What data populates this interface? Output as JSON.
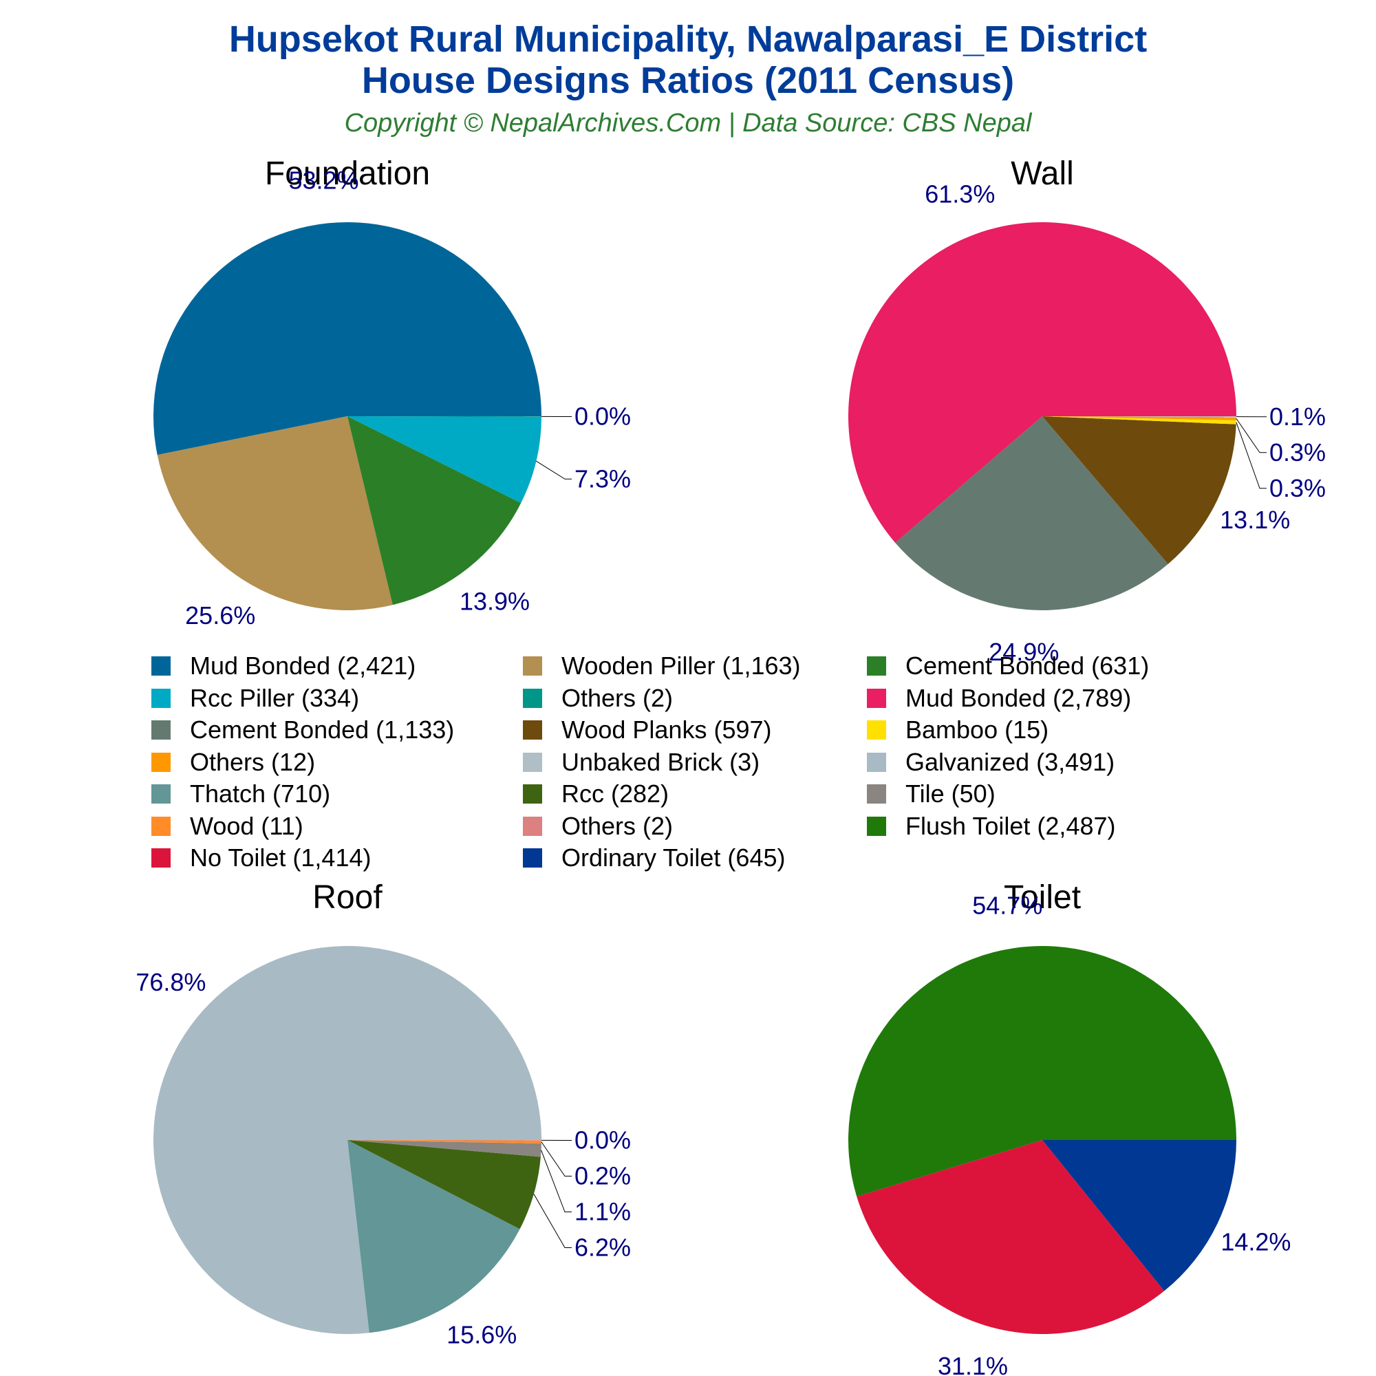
{
  "header": {
    "title_line1": "Hupsekot Rural Municipality, Nawalparasi_E District",
    "title_line2": "House Designs Ratios (2011 Census)",
    "subtitle": "Copyright © NepalArchives.Com | Data Source: CBS Nepal"
  },
  "chart_data": [
    {
      "type": "pie",
      "title": "Foundation",
      "slices": [
        {
          "label": "Mud Bonded",
          "count": 2421,
          "percent": "53.2%",
          "color": "#006699"
        },
        {
          "label": "Wooden Piller",
          "count": 1163,
          "percent": "25.6%",
          "color": "#B38F50"
        },
        {
          "label": "Cement Bonded",
          "count": 631,
          "percent": "13.9%",
          "color": "#2B7F27"
        },
        {
          "label": "Rcc Piller",
          "count": 334,
          "percent": "7.3%",
          "color": "#00AAC4"
        },
        {
          "label": "Others",
          "count": 2,
          "percent": "0.0%",
          "color": "#009688"
        }
      ]
    },
    {
      "type": "pie",
      "title": "Wall",
      "slices": [
        {
          "label": "Mud Bonded",
          "count": 2789,
          "percent": "61.3%",
          "color": "#E91E63"
        },
        {
          "label": "Cement Bonded",
          "count": 1133,
          "percent": "24.9%",
          "color": "#647A70"
        },
        {
          "label": "Wood Planks",
          "count": 597,
          "percent": "13.1%",
          "color": "#6E4A0C"
        },
        {
          "label": "Bamboo",
          "count": 15,
          "percent": "0.3%",
          "color": "#FFE000"
        },
        {
          "label": "Others",
          "count": 12,
          "percent": "0.3%",
          "color": "#FF9800"
        },
        {
          "label": "Unbaked Brick",
          "count": 3,
          "percent": "0.1%",
          "color": "#B0BEC5"
        }
      ]
    },
    {
      "type": "pie",
      "title": "Roof",
      "slices": [
        {
          "label": "Galvanized",
          "count": 3491,
          "percent": "76.8%",
          "color": "#A8BAC4"
        },
        {
          "label": "Thatch",
          "count": 710,
          "percent": "15.6%",
          "color": "#639696"
        },
        {
          "label": "Rcc",
          "count": 282,
          "percent": "6.2%",
          "color": "#3E6412"
        },
        {
          "label": "Tile",
          "count": 50,
          "percent": "1.1%",
          "color": "#8A8580"
        },
        {
          "label": "Wood",
          "count": 11,
          "percent": "0.2%",
          "color": "#FF8C28"
        },
        {
          "label": "Others",
          "count": 2,
          "percent": "0.0%",
          "color": "#DD8080"
        }
      ]
    },
    {
      "type": "pie",
      "title": "Toilet",
      "slices": [
        {
          "label": "Flush Toilet",
          "count": 2487,
          "percent": "54.7%",
          "color": "#1F7A0A"
        },
        {
          "label": "No Toilet",
          "count": 1414,
          "percent": "31.1%",
          "color": "#DC143C"
        },
        {
          "label": "Ordinary Toilet",
          "count": 645,
          "percent": "14.2%",
          "color": "#003893"
        }
      ]
    }
  ],
  "legend": {
    "columns": [
      [
        {
          "label": "Mud Bonded (2,421)",
          "color": "#006699"
        },
        {
          "label": "Rcc Piller (334)",
          "color": "#00AAC4"
        },
        {
          "label": "Cement Bonded (1,133)",
          "color": "#647A70"
        },
        {
          "label": "Others (12)",
          "color": "#FF9800"
        },
        {
          "label": "Thatch (710)",
          "color": "#639696"
        },
        {
          "label": "Wood (11)",
          "color": "#FF8C28"
        },
        {
          "label": "No Toilet (1,414)",
          "color": "#DC143C"
        }
      ],
      [
        {
          "label": "Wooden Piller (1,163)",
          "color": "#B38F50"
        },
        {
          "label": "Others (2)",
          "color": "#009688"
        },
        {
          "label": "Wood Planks (597)",
          "color": "#6E4A0C"
        },
        {
          "label": "Unbaked Brick (3)",
          "color": "#B0BEC5"
        },
        {
          "label": "Rcc (282)",
          "color": "#3E6412"
        },
        {
          "label": "Others (2)",
          "color": "#DD8080"
        },
        {
          "label": "Ordinary Toilet (645)",
          "color": "#003893"
        }
      ],
      [
        {
          "label": "Cement Bonded (631)",
          "color": "#2B7F27"
        },
        {
          "label": "Mud Bonded (2,789)",
          "color": "#E91E63"
        },
        {
          "label": "Bamboo (15)",
          "color": "#FFE000"
        },
        {
          "label": "Galvanized (3,491)",
          "color": "#A8BAC4"
        },
        {
          "label": "Tile (50)",
          "color": "#8A8580"
        },
        {
          "label": "Flush Toilet (2,487)",
          "color": "#1F7A0A"
        }
      ]
    ]
  }
}
